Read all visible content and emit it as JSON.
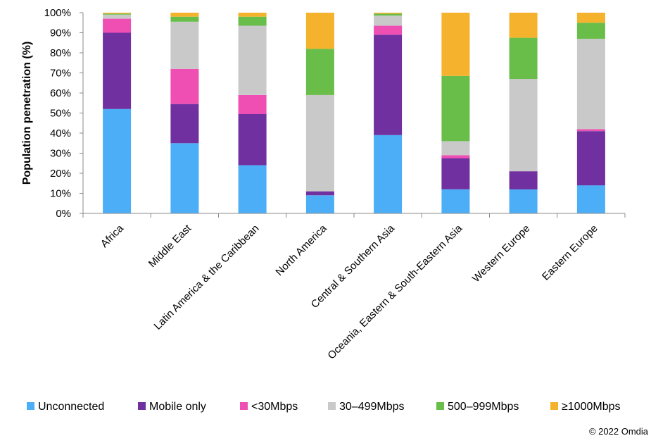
{
  "chart_data": {
    "type": "bar",
    "stacked": true,
    "ylabel": "Population penetration (%)",
    "ylim": [
      0,
      100
    ],
    "yticks": [
      0,
      10,
      20,
      30,
      40,
      50,
      60,
      70,
      80,
      90,
      100
    ],
    "ytick_labels": [
      "0%",
      "10%",
      "20%",
      "30%",
      "40%",
      "50%",
      "60%",
      "70%",
      "80%",
      "90%",
      "100%"
    ],
    "grid": false,
    "legend_position": "bottom",
    "categories": [
      "Africa",
      "Middle East",
      "Latin America & the Caribbean",
      "North America",
      "Central & Southern Asia",
      "Oceania, Eastern & South-Eastern Asia",
      "Western Europe",
      "Eastern Europe"
    ],
    "series": [
      {
        "name": "Unconnected",
        "color": "#4DAEF8",
        "values": [
          52,
          35,
          24,
          9,
          39,
          12,
          12,
          14
        ]
      },
      {
        "name": "Mobile only",
        "color": "#7030A0",
        "values": [
          38,
          19.5,
          25.5,
          2,
          50,
          15.5,
          9,
          27
        ]
      },
      {
        "name": "<30Mbps",
        "color": "#EF4EB2",
        "values": [
          7,
          17.5,
          9.5,
          0,
          4.5,
          1.5,
          0,
          1
        ]
      },
      {
        "name": "30–499Mbps",
        "color": "#C9C9C9",
        "values": [
          2,
          23.5,
          34.5,
          48,
          5,
          7,
          46,
          45
        ]
      },
      {
        "name": "500–999Mbps",
        "color": "#69BE4A",
        "values": [
          0.5,
          2.5,
          4.5,
          23,
          1,
          32.5,
          20.5,
          8
        ]
      },
      {
        "name": "≥1000Mbps",
        "color": "#F5B22C",
        "values": [
          0.5,
          2,
          2,
          18,
          0.5,
          31.5,
          12.5,
          5
        ]
      }
    ]
  },
  "footer": {
    "copyright": "© 2022 Omdia"
  }
}
